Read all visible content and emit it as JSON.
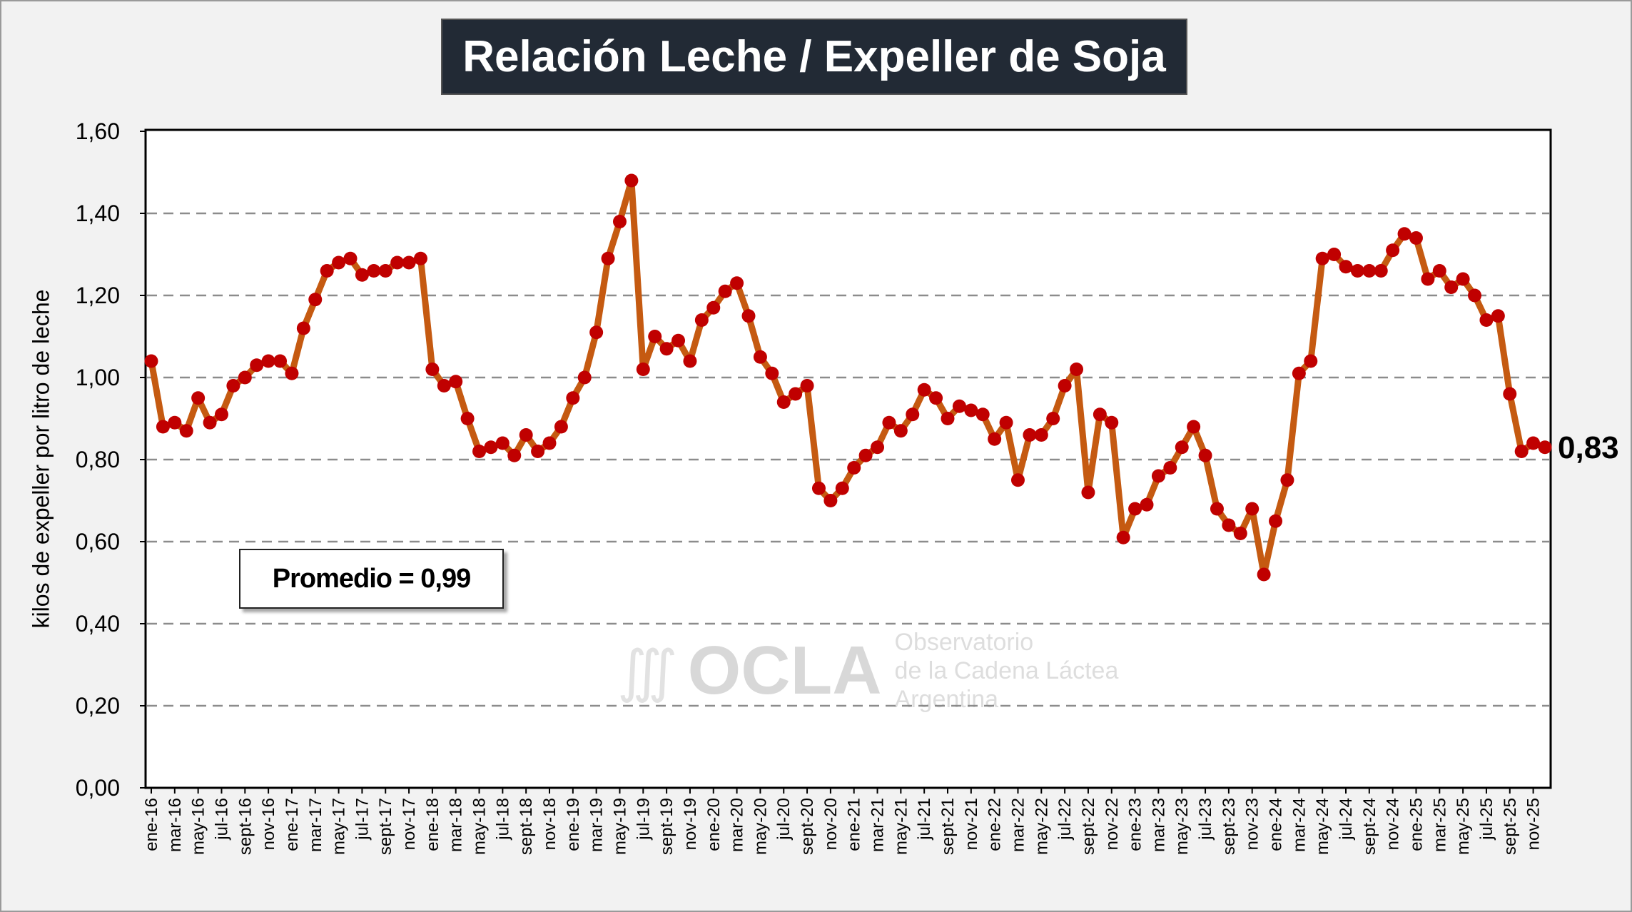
{
  "chart_data": {
    "type": "line",
    "title": "Relación Leche / Expeller de Soja",
    "ylabel": "kilos de expeller por litro de leche",
    "xlabel": "",
    "ylim": [
      0,
      1.6
    ],
    "y_ticks": [
      "0,00",
      "0,20",
      "0,40",
      "0,60",
      "0,80",
      "1,00",
      "1,20",
      "1,40",
      "1,60"
    ],
    "grid": "horizontal dashed",
    "x_tick_labels": [
      "ene-16",
      "mar-16",
      "may-16",
      "jul-16",
      "sept-16",
      "nov-16",
      "ene-17",
      "mar-17",
      "may-17",
      "jul-17",
      "sept-17",
      "nov-17",
      "ene-18",
      "mar-18",
      "may-18",
      "jul-18",
      "sept-18",
      "nov-18",
      "ene-19",
      "mar-19",
      "may-19",
      "jul-19",
      "sept-19",
      "nov-19",
      "ene-20",
      "mar-20",
      "may-20",
      "jul-20",
      "sept-20",
      "nov-20",
      "ene-21",
      "mar-21",
      "may-21",
      "jul-21",
      "sept-21",
      "nov-21",
      "ene-22",
      "mar-22",
      "may-22",
      "jul-22",
      "sept-22",
      "nov-22",
      "ene-23",
      "mar-23",
      "may-23",
      "jul-23",
      "sept-23",
      "nov-23",
      "ene-24",
      "mar-24",
      "may-24",
      "jul-24",
      "sept-24",
      "nov-24",
      "ene-25",
      "mar-25",
      "may-25",
      "jul-25",
      "sept-25",
      "nov-25"
    ],
    "values": [
      1.04,
      0.88,
      0.89,
      0.87,
      0.95,
      0.89,
      0.91,
      0.98,
      1.0,
      1.03,
      1.04,
      1.04,
      1.01,
      1.12,
      1.19,
      1.26,
      1.28,
      1.29,
      1.25,
      1.26,
      1.26,
      1.28,
      1.28,
      1.29,
      1.02,
      0.98,
      0.99,
      0.9,
      0.82,
      0.83,
      0.84,
      0.81,
      0.86,
      0.82,
      0.84,
      0.88,
      0.95,
      1.0,
      1.11,
      1.29,
      1.38,
      1.48,
      1.02,
      1.1,
      1.07,
      1.09,
      1.04,
      1.14,
      1.17,
      1.21,
      1.23,
      1.15,
      1.05,
      1.01,
      0.94,
      0.96,
      0.98,
      0.73,
      0.7,
      0.73,
      0.78,
      0.81,
      0.83,
      0.89,
      0.87,
      0.91,
      0.97,
      0.95,
      0.9,
      0.93,
      0.92,
      0.91,
      0.85,
      0.89,
      0.75,
      0.86,
      0.86,
      0.9,
      0.98,
      1.02,
      0.72,
      0.91,
      0.89,
      0.61,
      0.68,
      0.69,
      0.76,
      0.78,
      0.83,
      0.88,
      0.81,
      0.68,
      0.64,
      0.62,
      0.68,
      0.52,
      0.65,
      0.75,
      1.01,
      1.04,
      1.29,
      1.3,
      1.27,
      1.26,
      1.26,
      1.26,
      1.31,
      1.35,
      1.34,
      1.24,
      1.26,
      1.22,
      1.24,
      1.2,
      1.14,
      1.15,
      0.96,
      0.82,
      0.84,
      0.83
    ],
    "last_value_label": "0,83",
    "annotation": "Promedio = 0,99",
    "colors": {
      "line": "#c55a11",
      "marker": "#c00000",
      "title_bg": "#222a35"
    }
  },
  "watermark": {
    "logo": "OCLA",
    "line1": "Observatorio",
    "line2": "de la Cadena Láctea",
    "line3": "Argentina"
  }
}
